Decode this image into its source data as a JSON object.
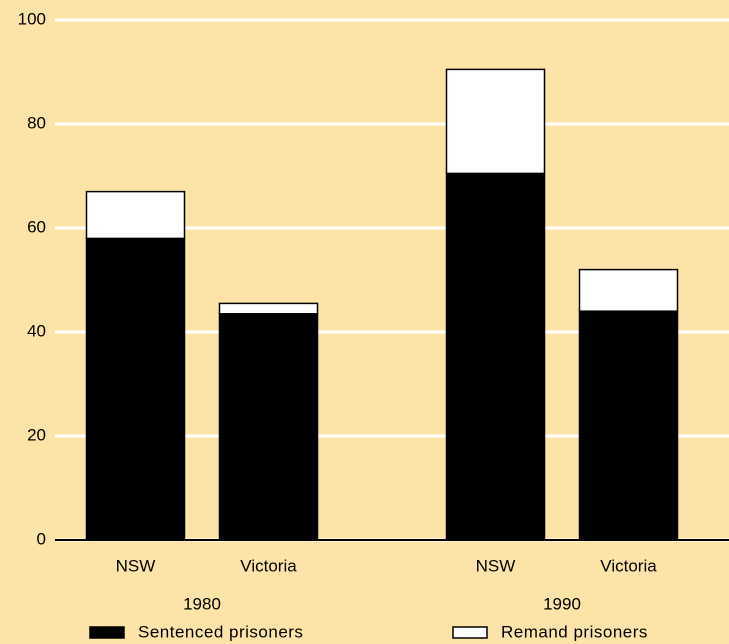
{
  "chart_data": {
    "type": "stacked_bar",
    "categories": [
      "NSW",
      "Victoria",
      "NSW",
      "Victoria"
    ],
    "group_labels": [
      "1980",
      "1990"
    ],
    "series": [
      {
        "name": "Sentenced prisoners",
        "color": "#000000",
        "values": [
          58,
          43.5,
          70.5,
          44
        ]
      },
      {
        "name": "Remand prisoners",
        "color": "#ffffff",
        "values": [
          9,
          2,
          20,
          8
        ]
      }
    ],
    "ylim": [
      0,
      100
    ],
    "yticks": [
      0,
      20,
      40,
      60,
      80,
      100
    ],
    "grid": true,
    "legend": "bottom"
  }
}
